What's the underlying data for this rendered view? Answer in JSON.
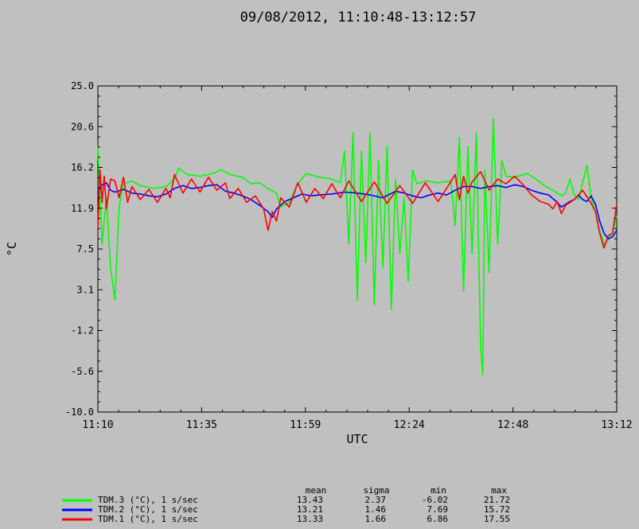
{
  "chart_data": {
    "type": "line",
    "title": "09/08/2012, 11:10:48-13:12:57",
    "xlabel": "UTC",
    "ylabel": "°C",
    "ylim": [
      -10.0,
      25.0
    ],
    "xlim_minutes": [
      0,
      122
    ],
    "y_ticks": [
      "25.0",
      "20.6",
      "16.2",
      "11.9",
      "7.5",
      "3.1",
      "-1.2",
      "-5.6",
      "-10.0"
    ],
    "x_ticks": [
      "11:10",
      "11:35",
      "11:59",
      "12:24",
      "12:48",
      "13:12"
    ],
    "grid": false,
    "legend_position": "bottom-left",
    "stats_headers": [
      "mean",
      "sigma",
      "min",
      "max"
    ],
    "series": [
      {
        "name": "TDM.3 (°C), 1 s/sec",
        "color": "#00ff00",
        "stats": [
          "13.43",
          "2.37",
          "-6.02",
          "21.72"
        ],
        "points": [
          [
            0,
            18.5
          ],
          [
            1,
            8.0
          ],
          [
            2,
            13.0
          ],
          [
            3,
            5.5
          ],
          [
            4,
            2.0
          ],
          [
            5,
            12.0
          ],
          [
            6,
            14.5
          ],
          [
            8,
            14.8
          ],
          [
            10,
            14.3
          ],
          [
            13,
            14.0
          ],
          [
            16,
            14.2
          ],
          [
            18,
            15.0
          ],
          [
            19,
            16.2
          ],
          [
            21,
            15.5
          ],
          [
            24,
            15.3
          ],
          [
            27,
            15.6
          ],
          [
            29,
            16.0
          ],
          [
            31,
            15.5
          ],
          [
            34,
            15.2
          ],
          [
            36,
            14.5
          ],
          [
            38,
            14.6
          ],
          [
            40,
            14.0
          ],
          [
            42,
            13.5
          ],
          [
            43,
            12.0
          ],
          [
            45,
            12.5
          ],
          [
            47,
            14.5
          ],
          [
            49,
            15.6
          ],
          [
            52,
            15.2
          ],
          [
            55,
            15.0
          ],
          [
            57,
            14.6
          ],
          [
            58,
            18.0
          ],
          [
            59,
            8.0
          ],
          [
            60,
            20.0
          ],
          [
            61,
            2.0
          ],
          [
            62,
            18.0
          ],
          [
            63,
            6.0
          ],
          [
            64,
            20.0
          ],
          [
            65,
            1.5
          ],
          [
            66,
            17.0
          ],
          [
            67,
            5.5
          ],
          [
            68,
            18.5
          ],
          [
            69,
            1.0
          ],
          [
            70,
            15.0
          ],
          [
            71,
            7.0
          ],
          [
            72,
            13.0
          ],
          [
            73,
            4.0
          ],
          [
            74,
            16.0
          ],
          [
            75,
            14.5
          ],
          [
            77,
            14.8
          ],
          [
            80,
            14.6
          ],
          [
            83,
            14.8
          ],
          [
            84,
            10.0
          ],
          [
            85,
            19.5
          ],
          [
            86,
            3.0
          ],
          [
            87,
            18.5
          ],
          [
            88,
            7.0
          ],
          [
            89,
            20.0
          ],
          [
            90,
            -3.0
          ],
          [
            90.5,
            -6.0
          ],
          [
            91,
            16.0
          ],
          [
            92,
            5.0
          ],
          [
            93,
            21.5
          ],
          [
            94,
            8.0
          ],
          [
            95,
            17.0
          ],
          [
            96,
            15.3
          ],
          [
            98,
            15.2
          ],
          [
            101,
            15.6
          ],
          [
            103,
            15.0
          ],
          [
            105,
            14.3
          ],
          [
            107,
            13.8
          ],
          [
            109,
            13.2
          ],
          [
            110,
            13.5
          ],
          [
            111,
            15.0
          ],
          [
            112,
            13.3
          ],
          [
            113,
            12.8
          ],
          [
            115,
            16.5
          ],
          [
            116,
            13.0
          ],
          [
            117,
            11.5
          ],
          [
            118,
            9.5
          ],
          [
            119,
            8.0
          ],
          [
            120,
            8.5
          ],
          [
            121,
            9.2
          ],
          [
            122,
            11.0
          ]
        ]
      },
      {
        "name": "TDM.2 (°C), 1 s/sec",
        "color": "#0000ff",
        "stats": [
          "13.21",
          "1.46",
          "7.69",
          "15.72"
        ],
        "points": [
          [
            0,
            13.5
          ],
          [
            1,
            14.4
          ],
          [
            2,
            14.6
          ],
          [
            3,
            13.8
          ],
          [
            4,
            13.6
          ],
          [
            6,
            13.9
          ],
          [
            8,
            13.5
          ],
          [
            10,
            13.4
          ],
          [
            12,
            13.2
          ],
          [
            14,
            13.1
          ],
          [
            16,
            13.4
          ],
          [
            18,
            14.0
          ],
          [
            20,
            14.3
          ],
          [
            22,
            14.0
          ],
          [
            24,
            14.1
          ],
          [
            26,
            14.3
          ],
          [
            28,
            14.4
          ],
          [
            30,
            13.7
          ],
          [
            32,
            13.5
          ],
          [
            34,
            13.2
          ],
          [
            36,
            12.8
          ],
          [
            38,
            12.2
          ],
          [
            40,
            11.5
          ],
          [
            41,
            10.9
          ],
          [
            42,
            11.8
          ],
          [
            44,
            12.6
          ],
          [
            46,
            13.0
          ],
          [
            48,
            13.4
          ],
          [
            50,
            13.2
          ],
          [
            52,
            13.3
          ],
          [
            55,
            13.4
          ],
          [
            58,
            13.6
          ],
          [
            61,
            13.5
          ],
          [
            64,
            13.3
          ],
          [
            67,
            13.0
          ],
          [
            70,
            13.7
          ],
          [
            72,
            13.5
          ],
          [
            74,
            13.2
          ],
          [
            76,
            13.0
          ],
          [
            78,
            13.3
          ],
          [
            80,
            13.5
          ],
          [
            82,
            13.3
          ],
          [
            84,
            13.8
          ],
          [
            86,
            14.2
          ],
          [
            88,
            14.2
          ],
          [
            90,
            14.0
          ],
          [
            92,
            14.2
          ],
          [
            94,
            14.3
          ],
          [
            96,
            14.1
          ],
          [
            98,
            14.4
          ],
          [
            100,
            14.2
          ],
          [
            102,
            13.8
          ],
          [
            104,
            13.5
          ],
          [
            106,
            13.3
          ],
          [
            108,
            12.5
          ],
          [
            109,
            12.0
          ],
          [
            110,
            12.3
          ],
          [
            111,
            12.6
          ],
          [
            112,
            12.8
          ],
          [
            113,
            13.3
          ],
          [
            114,
            12.8
          ],
          [
            115,
            12.6
          ],
          [
            116,
            13.2
          ],
          [
            117,
            12.3
          ],
          [
            118,
            10.5
          ],
          [
            119,
            9.2
          ],
          [
            120,
            8.6
          ],
          [
            121,
            8.8
          ],
          [
            122,
            9.5
          ]
        ]
      },
      {
        "name": "TDM.1 (°C), 1 s/sec",
        "color": "#ff0000",
        "stats": [
          "13.33",
          "1.66",
          "6.86",
          "17.55"
        ],
        "points": [
          [
            0,
            9.5
          ],
          [
            0.5,
            16.0
          ],
          [
            1,
            12.5
          ],
          [
            1.5,
            15.3
          ],
          [
            2,
            11.8
          ],
          [
            3,
            15.0
          ],
          [
            4,
            14.8
          ],
          [
            5,
            13.0
          ],
          [
            6,
            15.2
          ],
          [
            7,
            12.5
          ],
          [
            8,
            14.2
          ],
          [
            10,
            12.8
          ],
          [
            12,
            13.9
          ],
          [
            14,
            12.5
          ],
          [
            16,
            14.0
          ],
          [
            17,
            13.0
          ],
          [
            18,
            15.5
          ],
          [
            20,
            13.5
          ],
          [
            22,
            15.0
          ],
          [
            24,
            13.6
          ],
          [
            26,
            15.2
          ],
          [
            28,
            13.8
          ],
          [
            30,
            14.6
          ],
          [
            31,
            12.9
          ],
          [
            33,
            14.0
          ],
          [
            35,
            12.5
          ],
          [
            37,
            13.2
          ],
          [
            39,
            11.8
          ],
          [
            40,
            9.5
          ],
          [
            41,
            11.5
          ],
          [
            42,
            10.5
          ],
          [
            43,
            13.0
          ],
          [
            45,
            12.0
          ],
          [
            47,
            14.6
          ],
          [
            49,
            12.5
          ],
          [
            51,
            14.0
          ],
          [
            53,
            12.9
          ],
          [
            55,
            14.5
          ],
          [
            57,
            13.0
          ],
          [
            59,
            14.8
          ],
          [
            62,
            12.6
          ],
          [
            65,
            14.7
          ],
          [
            68,
            12.4
          ],
          [
            71,
            14.3
          ],
          [
            74,
            12.4
          ],
          [
            77,
            14.6
          ],
          [
            80,
            12.6
          ],
          [
            82,
            14.0
          ],
          [
            84,
            15.5
          ],
          [
            85,
            12.8
          ],
          [
            86,
            15.3
          ],
          [
            87,
            13.5
          ],
          [
            88,
            14.7
          ],
          [
            90,
            15.8
          ],
          [
            92,
            13.8
          ],
          [
            94,
            15.0
          ],
          [
            96,
            14.5
          ],
          [
            98,
            15.3
          ],
          [
            100,
            14.4
          ],
          [
            102,
            13.3
          ],
          [
            104,
            12.6
          ],
          [
            106,
            12.3
          ],
          [
            107,
            11.8
          ],
          [
            108,
            12.6
          ],
          [
            109,
            11.3
          ],
          [
            110,
            12.2
          ],
          [
            112,
            12.8
          ],
          [
            114,
            13.8
          ],
          [
            116,
            12.4
          ],
          [
            117,
            11.5
          ],
          [
            118,
            9.2
          ],
          [
            119,
            7.6
          ],
          [
            120,
            8.9
          ],
          [
            121,
            9.2
          ],
          [
            122,
            12.3
          ]
        ]
      }
    ]
  }
}
